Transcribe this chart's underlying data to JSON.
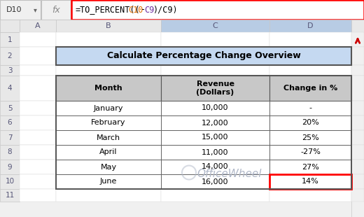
{
  "title": "Calculate Percentage Change Overview",
  "cell_ref": "D10",
  "formula_prefix": "=TO_PERCENT((",
  "formula_c10": "C10",
  "formula_mid": "-",
  "formula_c9a": "C9",
  "formula_suffix": ")/C9)",
  "headers": [
    "Month",
    "Revenue\n(Dollars)",
    "Change in %"
  ],
  "months": [
    "January",
    "February",
    "March",
    "April",
    "May",
    "June"
  ],
  "revenues": [
    "10,000",
    "12,000",
    "15,000",
    "11,000",
    "14,000",
    "16,000"
  ],
  "changes": [
    "-",
    "20%",
    "25%",
    "-27%",
    "27%",
    "14%"
  ],
  "bg_color": "#f0f0f0",
  "white": "#ffffff",
  "header_fill": "#c8c8c8",
  "title_fill": "#c5d9f1",
  "formula_border": "#ff0000",
  "highlight_border": "#ff0000",
  "col_header_highlight": "#b8cce4",
  "scrollbar_arrow_color": "#cc0000",
  "row_num_bg": "#e8e8e8",
  "col_header_bg": "#e8e8e8",
  "grid_color": "#b0b0b0",
  "border_dark": "#555555",
  "text_normal": "#000000",
  "text_gray": "#666666",
  "text_c10": "#e07000",
  "text_c9": "#7030a0",
  "watermark_color": "#b0b8c8",
  "formula_text_color": "#000000"
}
